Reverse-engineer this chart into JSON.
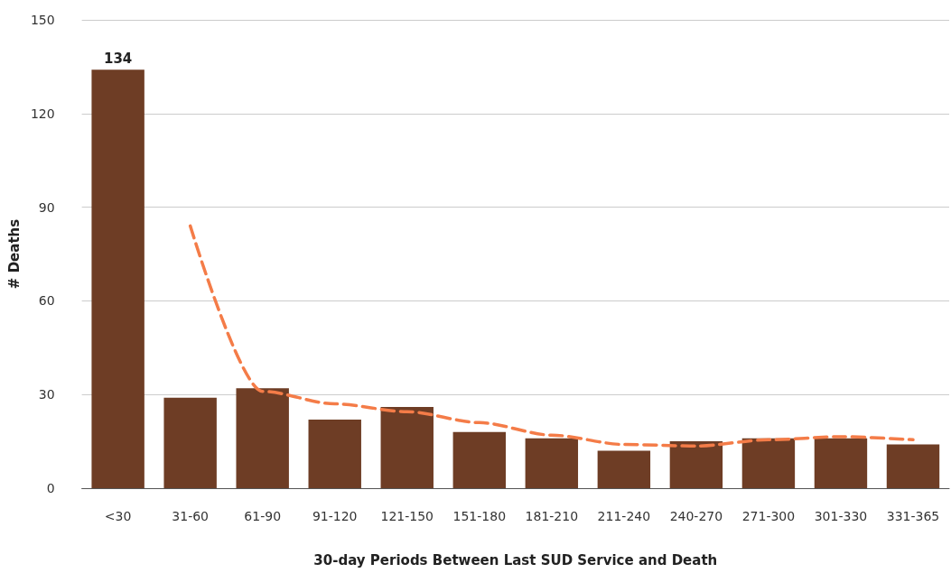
{
  "chart_data": {
    "type": "bar",
    "xlabel": "30-day Periods Between Last SUD Service and Death",
    "ylabel": "# Deaths",
    "categories": [
      "<30",
      "31-60",
      "61-90",
      "91-120",
      "121-150",
      "151-180",
      "181-210",
      "211-240",
      "240-270",
      "271-300",
      "301-330",
      "331-365"
    ],
    "series": [
      {
        "color": "#6e3d25",
        "values": [
          134,
          29,
          32,
          22,
          26,
          18,
          16,
          12,
          15,
          16,
          16,
          14
        ],
        "value_labels": [
          "134",
          null,
          null,
          null,
          null,
          null,
          null,
          null,
          null,
          null,
          null,
          null
        ]
      },
      {
        "type": "line",
        "color": "#f47c48",
        "line_style": "dashed",
        "marker": "none",
        "values": [
          null,
          84,
          31,
          27,
          24.5,
          21,
          17,
          14,
          13.5,
          15.5,
          16.5,
          15.5
        ]
      }
    ],
    "ylim": [
      0,
      150
    ],
    "yticks": [
      0,
      30,
      60,
      90,
      120,
      150
    ],
    "grid": "y"
  }
}
